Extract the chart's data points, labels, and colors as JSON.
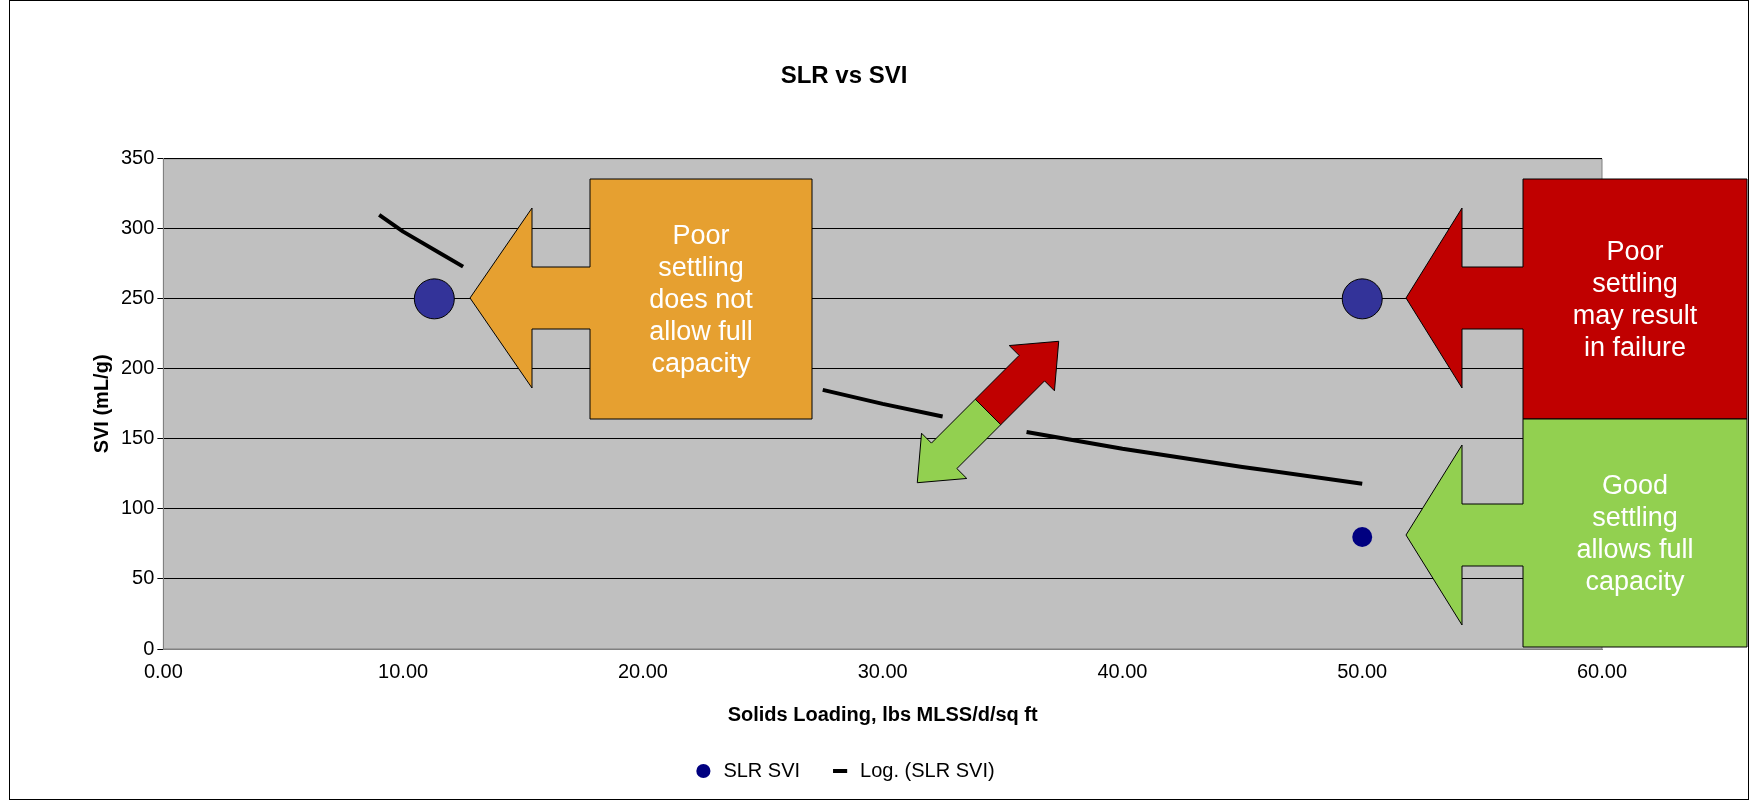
{
  "chart_data": {
    "type": "scatter",
    "title": "SLR vs SVI",
    "xlabel": "Solids Loading, lbs MLSS/d/sq ft",
    "ylabel": "SVI (mL/g)",
    "xlim": [
      0,
      60
    ],
    "xticks": [
      {
        "value": 0,
        "label": "0.00"
      },
      {
        "value": 10,
        "label": "10.00"
      },
      {
        "value": 20,
        "label": "20.00"
      },
      {
        "value": 30,
        "label": "30.00"
      },
      {
        "value": 40,
        "label": "40.00"
      },
      {
        "value": 50,
        "label": "50.00"
      },
      {
        "value": 60,
        "label": "60.00"
      }
    ],
    "ylim": [
      0,
      350
    ],
    "yticks": [
      0,
      50,
      100,
      150,
      200,
      250,
      300,
      350
    ],
    "grid": "y",
    "legend": "bottom",
    "marker": "circle",
    "series": [
      {
        "name": "SLR SVI",
        "color": "#000080",
        "x": [
          50
        ],
        "values": [
          80
        ]
      },
      {
        "color": "#333399",
        "x": [
          11.3,
          50
        ],
        "values": [
          250,
          250
        ]
      },
      {
        "name": "Log. (SLR SVI)",
        "type": "line",
        "color": "#000000",
        "marker": "none",
        "x": [
          9,
          10,
          12.5,
          15,
          20,
          25,
          27.5,
          30,
          32.5,
          35,
          36,
          40,
          45,
          50
        ],
        "values": [
          310,
          298,
          273,
          null,
          null,
          null,
          185,
          175,
          166,
          null,
          155,
          143,
          130,
          118
        ]
      }
    ],
    "annotations": [
      "Poor settling does not allow full capacity",
      "Poor settling may result in failure",
      "Good settling allows full capacity"
    ]
  }
}
